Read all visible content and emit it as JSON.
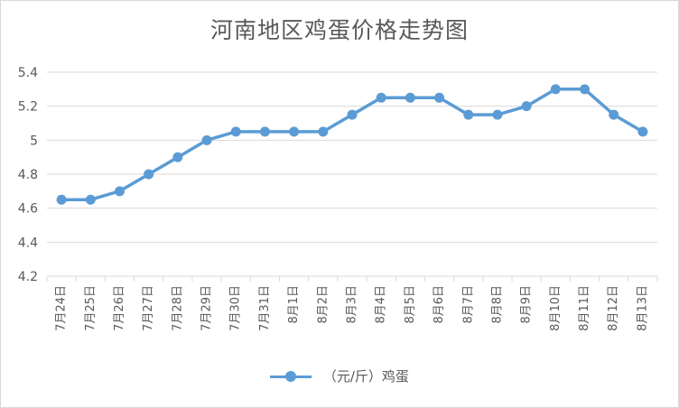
{
  "chart_data": {
    "type": "line",
    "title": "河南地区鸡蛋价格走势图",
    "categories": [
      "7月24日",
      "7月25日",
      "7月26日",
      "7月27日",
      "7月28日",
      "7月29日",
      "7月30日",
      "7月31日",
      "8月1日",
      "8月2日",
      "8月3日",
      "8月4日",
      "8月5日",
      "8月6日",
      "8月7日",
      "8月8日",
      "8月9日",
      "8月10日",
      "8月11日",
      "8月12日",
      "8月13日"
    ],
    "series": [
      {
        "name": "（元/斤）鸡蛋",
        "values": [
          4.65,
          4.65,
          4.7,
          4.8,
          4.9,
          5.0,
          5.05,
          5.05,
          5.05,
          5.05,
          5.15,
          5.25,
          5.25,
          5.25,
          5.15,
          5.15,
          5.2,
          5.3,
          5.3,
          5.15,
          5.05
        ]
      }
    ],
    "y_ticks": [
      "4.2",
      "4.4",
      "4.6",
      "4.8",
      "5",
      "5.2",
      "5.4"
    ],
    "ylim": [
      4.2,
      5.4
    ],
    "grid": true,
    "legend_position": "bottom",
    "colors": {
      "line": "#5b9bd5",
      "grid": "#d9d9d9",
      "text": "#595959"
    }
  }
}
